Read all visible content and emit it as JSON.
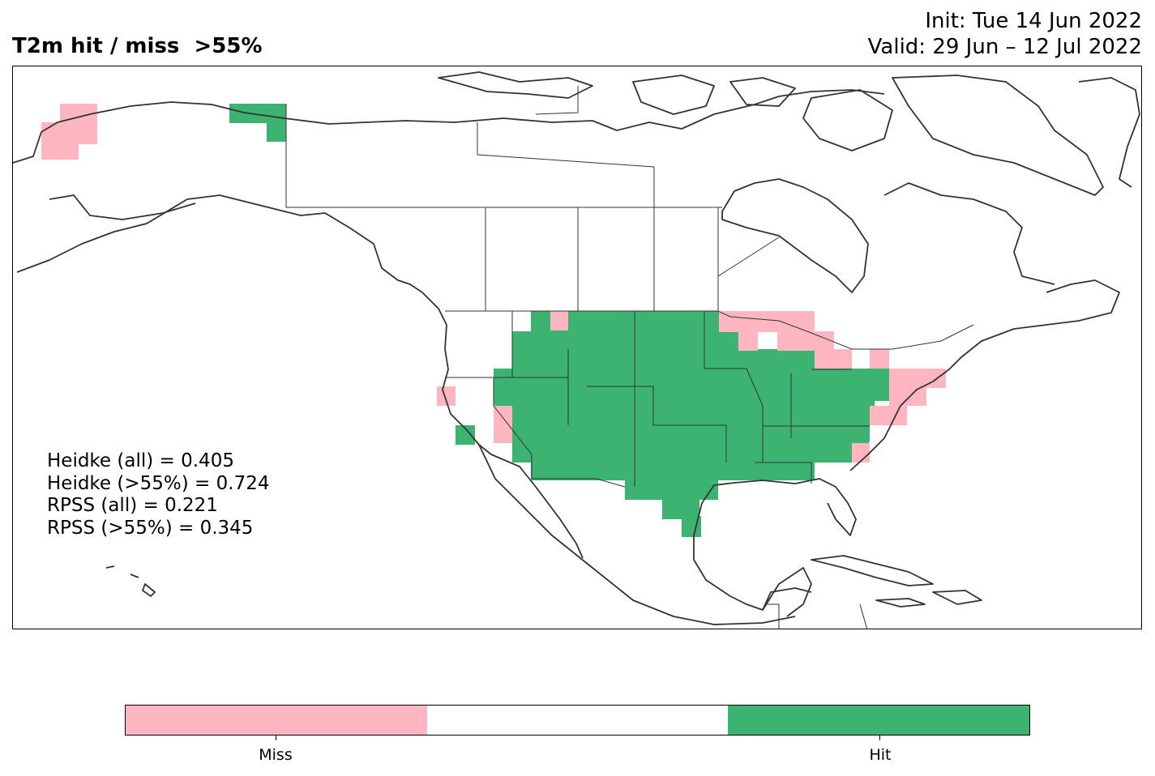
{
  "title": "T2m hit / miss  >55%",
  "init_label": "Init: Tue 14 Jun 2022",
  "valid_label": "Valid: 29 Jun – 12 Jul 2022",
  "stats": {
    "heidke_all": "Heidke (all) = 0.405",
    "heidke_55": "Heidke (>55%) = 0.724",
    "rpss_all": "RPSS (all) = 0.221",
    "rpss_55": "RPSS (>55%) = 0.345"
  },
  "colors": {
    "miss": "#ffb6c1",
    "neutral": "#ffffff",
    "hit": "#3cb371",
    "coast": "#333333"
  },
  "legend": {
    "miss_label": "Miss",
    "hit_label": "Hit"
  }
}
